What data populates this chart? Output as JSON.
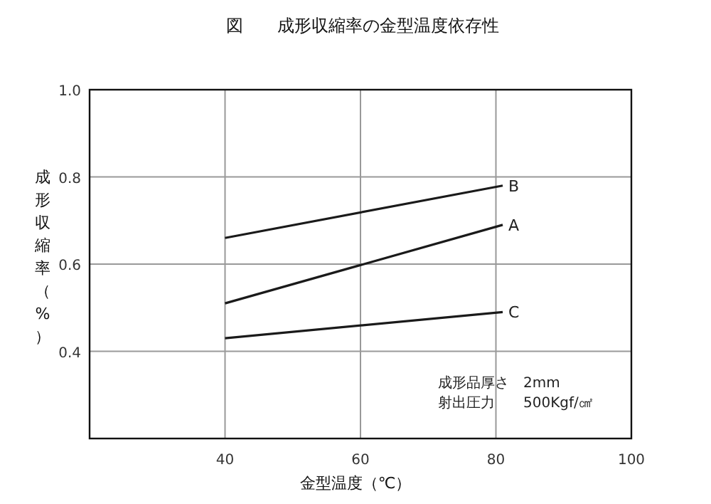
{
  "chart_data": {
    "type": "line",
    "title": "図　　成形収縮率の金型温度依存性",
    "xlabel": "金型温度（℃）",
    "ylabel": "成形収縮率（%）",
    "annotations": [
      "成形品厚さ　2mm",
      "射出圧力　　500Kgf/㎠"
    ],
    "xlim": [
      20,
      100
    ],
    "xticks": [
      {
        "value": 20,
        "label": null
      },
      40,
      60,
      80,
      100
    ],
    "ylim": [
      0.2,
      1.0
    ],
    "yticks": [
      {
        "value": 0.2,
        "label": null
      },
      0.4,
      0.6,
      0.8,
      {
        "value": 1.0,
        "label": "1.0"
      }
    ],
    "grid": true,
    "x": [
      40,
      81
    ],
    "marker": "none",
    "line_style": "solid",
    "series": [
      {
        "name": "B",
        "color": "#1a1a1a",
        "values": [
          0.66,
          0.78
        ]
      },
      {
        "name": "A",
        "color": "#1a1a1a",
        "values": [
          0.51,
          0.69
        ]
      },
      {
        "name": "C",
        "color": "#1a1a1a",
        "values": [
          0.43,
          0.49
        ]
      }
    ]
  }
}
